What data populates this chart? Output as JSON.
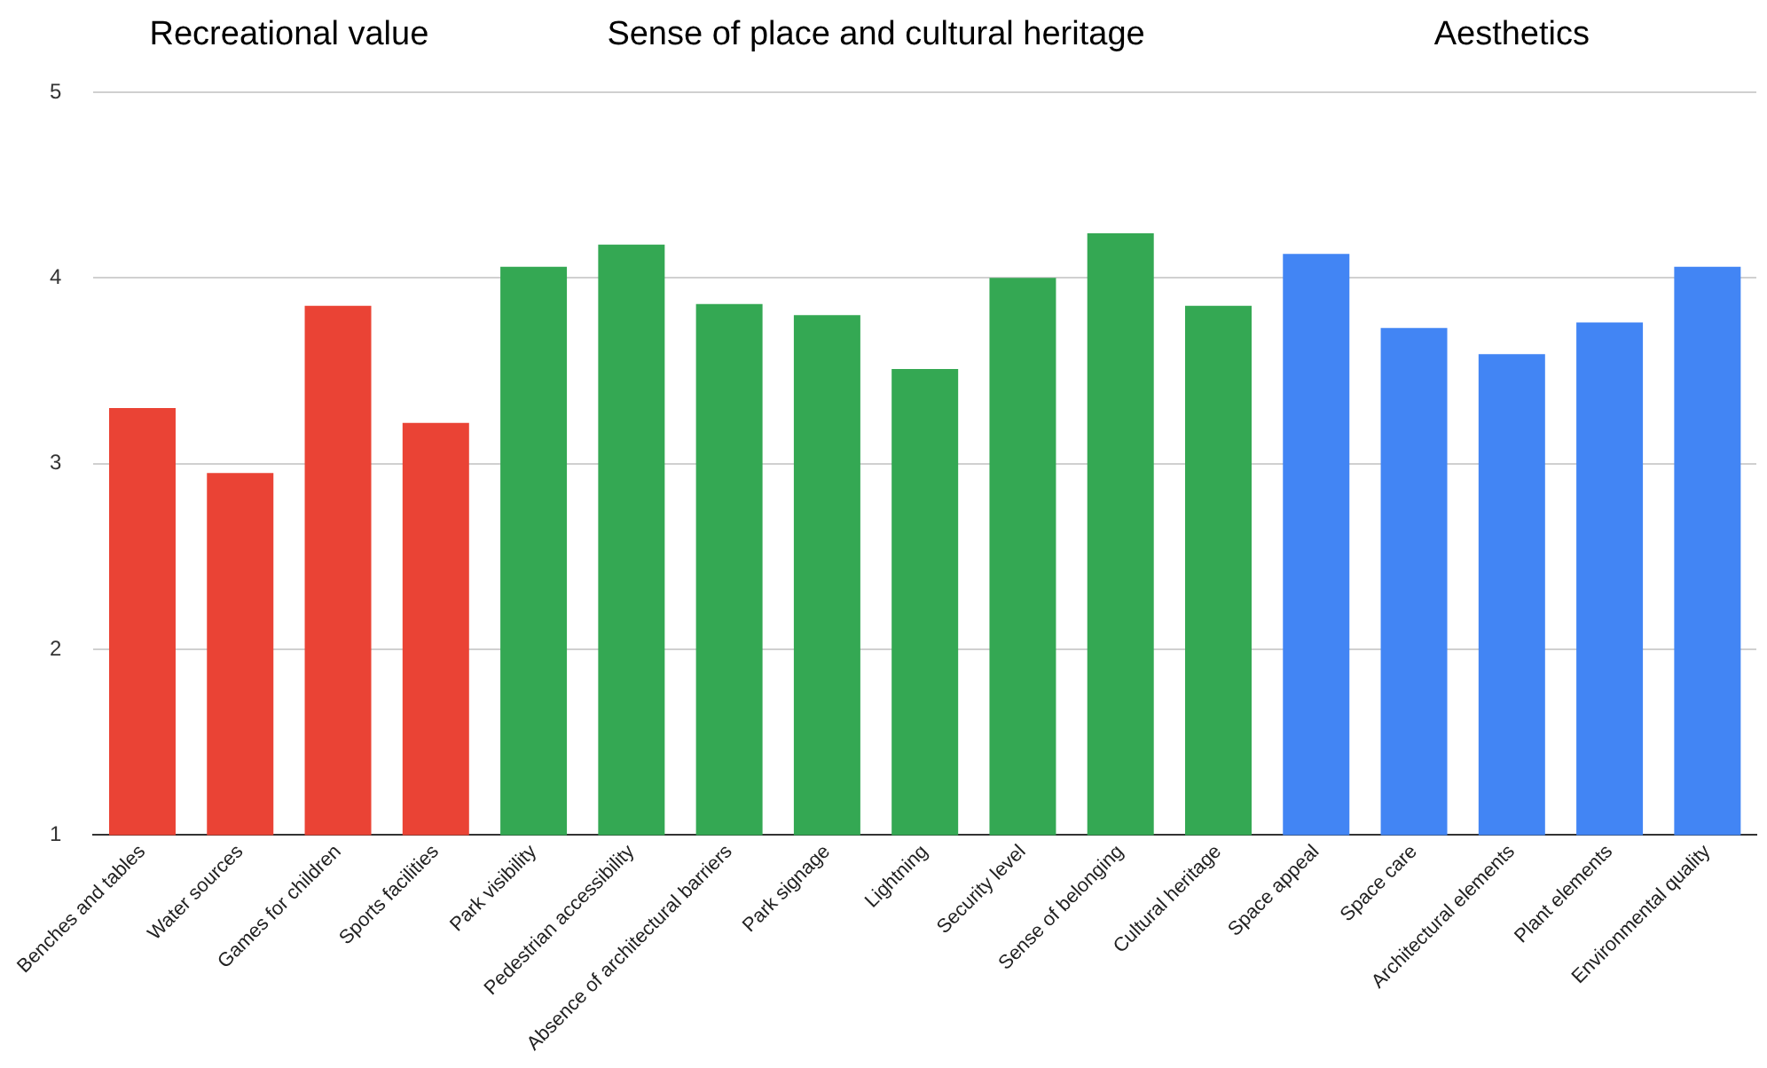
{
  "chart_data": {
    "type": "bar",
    "categories": [
      "Benches and tables",
      "Water sources",
      "Games for children",
      "Sports facilities",
      "Park visibility",
      "Pedestrian accessibility",
      "Absence of architectural barriers",
      "Park signage",
      "Lightning",
      "Security level",
      "Sense of belonging",
      "Cultural heritage",
      "Space appeal",
      "Space care",
      "Architectural elements",
      "Plant elements",
      "Environmental quality"
    ],
    "values": [
      3.3,
      2.95,
      3.85,
      3.22,
      4.06,
      4.18,
      3.86,
      3.8,
      3.51,
      4.0,
      4.24,
      3.85,
      4.13,
      3.73,
      3.59,
      3.76,
      4.06
    ],
    "colors": [
      "#ea4335",
      "#ea4335",
      "#ea4335",
      "#ea4335",
      "#34a853",
      "#34a853",
      "#34a853",
      "#34a853",
      "#34a853",
      "#34a853",
      "#34a853",
      "#34a853",
      "#4285f4",
      "#4285f4",
      "#4285f4",
      "#4285f4",
      "#4285f4"
    ],
    "ylim": [
      1,
      5
    ],
    "yticks": [
      1,
      2,
      3,
      4,
      5
    ],
    "grid": "y",
    "legend": false,
    "annotations": [
      "Recreational value",
      "Sense of place and cultural heritage",
      "Aesthetics"
    ]
  }
}
